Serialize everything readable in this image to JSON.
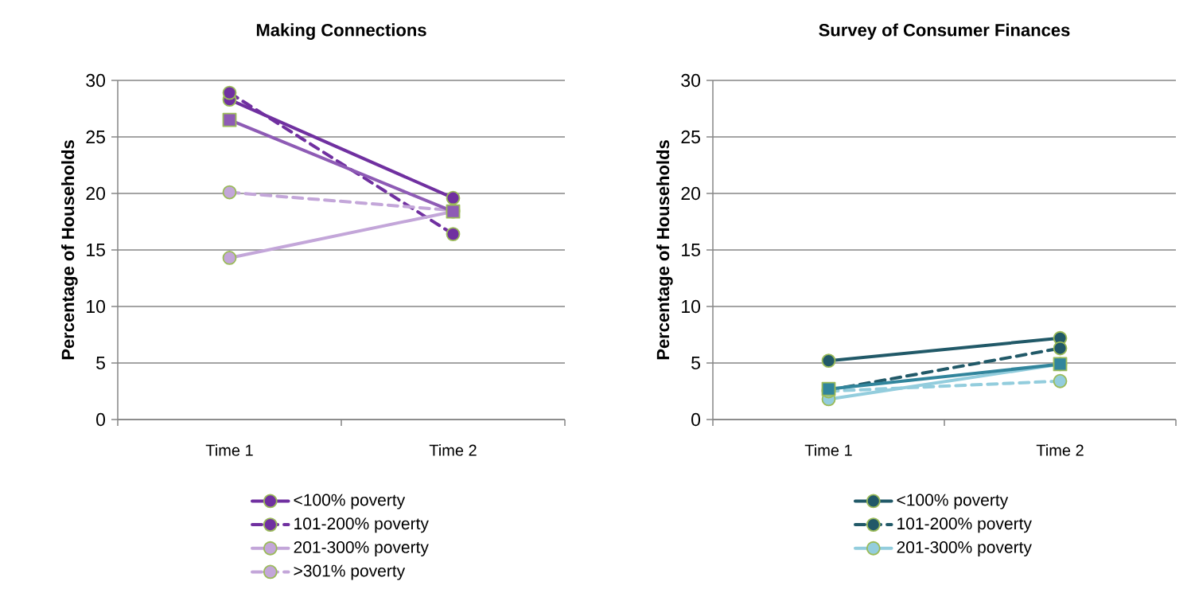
{
  "chart_data": [
    {
      "type": "line",
      "title": "Making Connections",
      "ylabel": "Percentage of Households",
      "categories": [
        "Time 1",
        "Time 2"
      ],
      "ylim": [
        0,
        30
      ],
      "yticks": [
        0,
        5,
        10,
        15,
        20,
        25,
        30
      ],
      "grid": "y",
      "legend": "bottom",
      "series": [
        {
          "name": "<100% poverty",
          "color": "#7030a0",
          "values": [
            28.3,
            19.6
          ],
          "line_style": "solid",
          "marker": "circle"
        },
        {
          "name": "101-200% poverty",
          "color": "#7030a0",
          "values": [
            28.9,
            16.4
          ],
          "line_style": "dashed",
          "marker": "circle"
        },
        {
          "name": "201-300% poverty",
          "color": "#c3a6d9",
          "values": [
            14.3,
            18.4
          ],
          "line_style": "solid",
          "marker": "circle"
        },
        {
          "name": ">301% poverty",
          "color": "#c3a6d9",
          "values": [
            20.1,
            18.5
          ],
          "line_style": "dashed",
          "marker": "circle"
        },
        {
          "color": "#8e5bb5",
          "values": [
            26.5,
            18.4
          ],
          "line_style": "solid",
          "marker": "square"
        }
      ]
    },
    {
      "type": "line",
      "title": "Survey of Consumer Finances",
      "ylabel": "Percentage of Households",
      "categories": [
        "Time 1",
        "Time 2"
      ],
      "ylim": [
        0,
        30
      ],
      "yticks": [
        0,
        5,
        10,
        15,
        20,
        25,
        30
      ],
      "grid": "y",
      "legend": "bottom",
      "series": [
        {
          "name": "<100% poverty",
          "color": "#215968",
          "values": [
            5.2,
            7.2
          ],
          "line_style": "solid",
          "marker": "circle"
        },
        {
          "name": "101-200% poverty",
          "color": "#215968",
          "values": [
            2.6,
            6.3
          ],
          "line_style": "dashed",
          "marker": "circle"
        },
        {
          "name": "201-300% poverty",
          "color": "#93cddd",
          "values": [
            1.8,
            4.9
          ],
          "line_style": "solid",
          "marker": "circle"
        },
        {
          "color": "#93cddd",
          "values": [
            2.5,
            3.4
          ],
          "line_style": "dashed",
          "marker": "circle"
        },
        {
          "color": "#31859c",
          "values": [
            2.7,
            4.9
          ],
          "line_style": "solid",
          "marker": "square"
        }
      ]
    }
  ]
}
